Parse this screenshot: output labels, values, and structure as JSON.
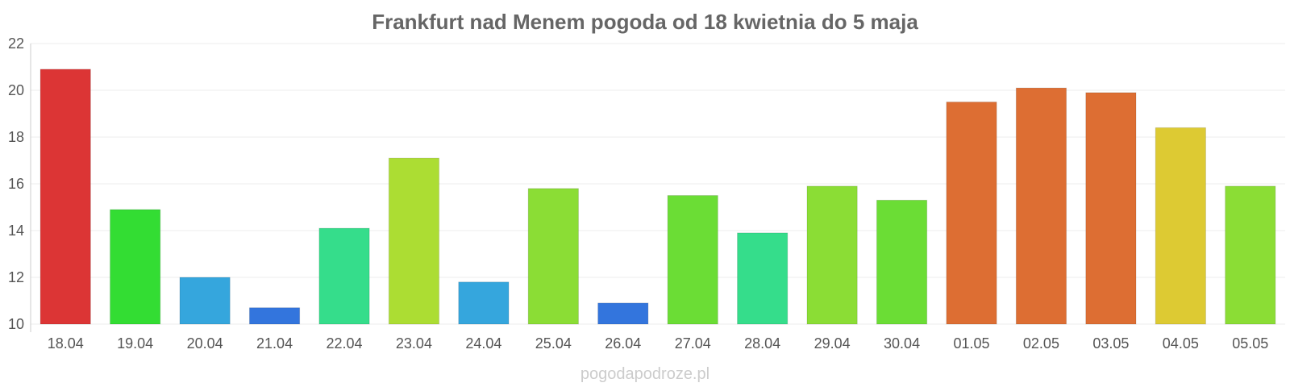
{
  "chart_data": {
    "type": "bar",
    "title": "Frankfurt nad Menem pogoda od 18 kwietnia do 5 maja",
    "xlabel": "",
    "ylabel": "",
    "ylim": [
      10,
      22
    ],
    "yticks": [
      "10",
      "12",
      "14",
      "16",
      "18",
      "20",
      "22"
    ],
    "grid": true,
    "categories": [
      "18.04",
      "19.04",
      "20.04",
      "21.04",
      "22.04",
      "23.04",
      "24.04",
      "25.04",
      "26.04",
      "27.04",
      "28.04",
      "29.04",
      "30.04",
      "01.05",
      "02.05",
      "03.05",
      "04.05",
      "05.05"
    ],
    "values": [
      20.9,
      14.9,
      12.0,
      10.7,
      14.1,
      17.1,
      11.8,
      15.8,
      10.9,
      15.5,
      13.9,
      15.9,
      15.3,
      19.5,
      20.1,
      19.9,
      18.4,
      15.9
    ],
    "colors": [
      "#dc3535",
      "#33dd33",
      "#35a6dd",
      "#3375dd",
      "#35dd8b",
      "#acdd33",
      "#35a6dd",
      "#8bdd35",
      "#3375dd",
      "#6bdd35",
      "#35dd8b",
      "#8bdd35",
      "#6bdd35",
      "#dd6e33",
      "#dd6e33",
      "#dd6e33",
      "#ddca33",
      "#8bdd35"
    ]
  },
  "watermark": "pogodapodroze.pl"
}
